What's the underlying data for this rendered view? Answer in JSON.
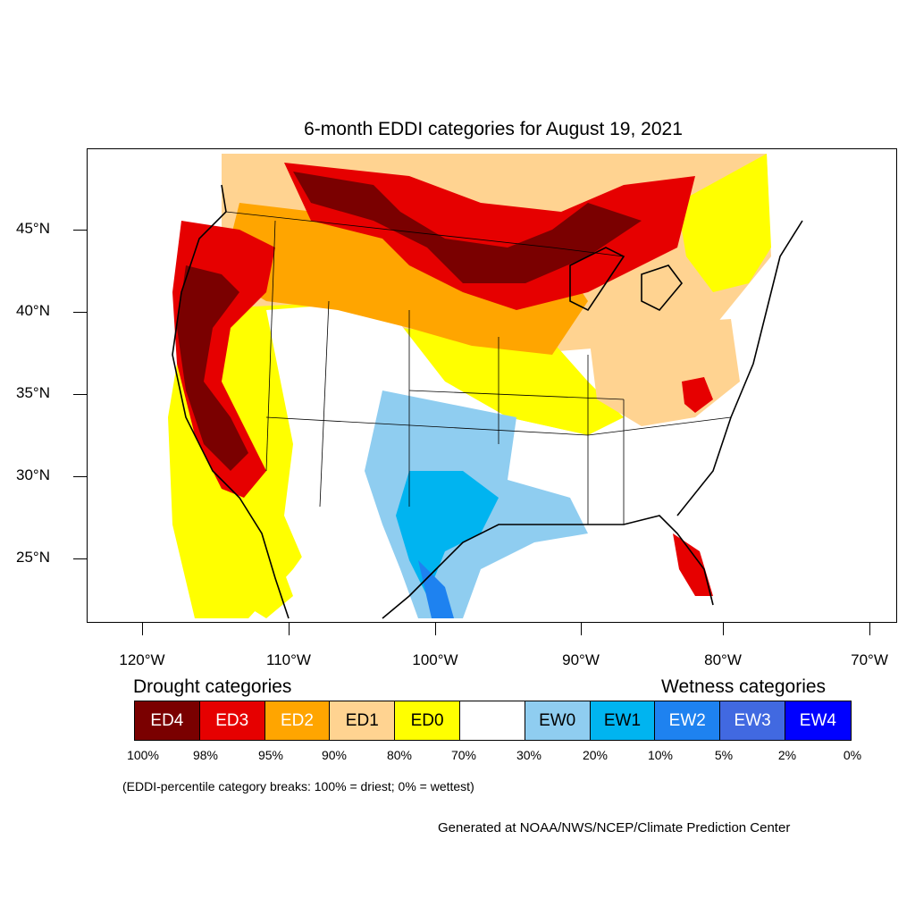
{
  "title": "6-month EDDI categories for August 19, 2021",
  "lat_labels": [
    "45°N",
    "40°N",
    "35°N",
    "30°N",
    "25°N"
  ],
  "lon_labels": [
    "120°W",
    "110°W",
    "100°W",
    "90°W",
    "80°W",
    "70°W"
  ],
  "drought_heading": "Drought categories",
  "wetness_heading": "Wetness categories",
  "legend": [
    {
      "label": "ED4",
      "color": "#7a0000",
      "text_color": "#ffffff"
    },
    {
      "label": "ED3",
      "color": "#e60000",
      "text_color": "#ffffff"
    },
    {
      "label": "ED2",
      "color": "#ffa500",
      "text_color": "#ffffff"
    },
    {
      "label": "ED1",
      "color": "#ffd391",
      "text_color": "#000000"
    },
    {
      "label": "ED0",
      "color": "#ffff00",
      "text_color": "#000000"
    },
    {
      "label": "",
      "color": "#ffffff",
      "text_color": "#000000"
    },
    {
      "label": "EW0",
      "color": "#8fcdf0",
      "text_color": "#000000"
    },
    {
      "label": "EW1",
      "color": "#00b4f0",
      "text_color": "#000000"
    },
    {
      "label": "EW2",
      "color": "#1e82f0",
      "text_color": "#ffffff"
    },
    {
      "label": "EW3",
      "color": "#4169e1",
      "text_color": "#ffffff"
    },
    {
      "label": "EW4",
      "color": "#0000ff",
      "text_color": "#ffffff"
    }
  ],
  "percent_breaks": [
    "100%",
    "98%",
    "95%",
    "90%",
    "80%",
    "70%",
    "30%",
    "20%",
    "10%",
    "5%",
    "2%",
    "0%"
  ],
  "note": "(EDDI-percentile category breaks: 100% = driest; 0% = wettest)",
  "credit": "Generated at NOAA/NWS/NCEP/Climate Prediction Center"
}
